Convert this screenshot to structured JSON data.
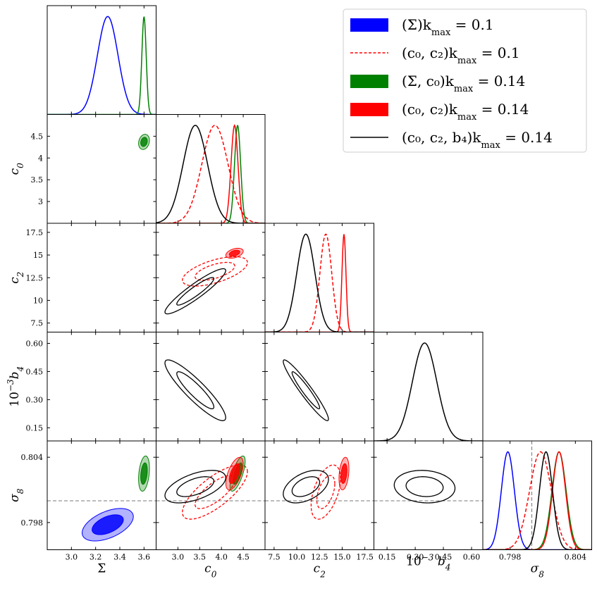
{
  "chart_data": {
    "type": "corner",
    "parameters": [
      {
        "key": "sigma",
        "label_x": "Σ",
        "label_y": "",
        "range": [
          2.8,
          3.7
        ],
        "ticks": [
          "3.0",
          "3.2",
          "3.4",
          "3.6"
        ]
      },
      {
        "key": "c0",
        "label_x": "c0",
        "label_y": "c0",
        "range": [
          2.5,
          5.0
        ],
        "ticks": [
          "3.0",
          "3.5",
          "4.0",
          "4.5"
        ]
      },
      {
        "key": "c2",
        "label_x": "c2",
        "label_y": "c2",
        "range": [
          6.5,
          18.5
        ],
        "ticks": [
          "7.5",
          "10.0",
          "12.5",
          "15.0",
          "17.5"
        ]
      },
      {
        "key": "b4",
        "label_x": "10⁻³ b4",
        "label_y": "10⁻³ b4",
        "range": [
          0.08,
          0.66
        ],
        "ticks": [
          "0.15",
          "0.30",
          "0.45",
          "0.60"
        ]
      },
      {
        "key": "s8",
        "label_x": "σ8",
        "label_y": "σ8",
        "range": [
          0.7955,
          0.8055
        ],
        "ticks": [
          "0.798",
          "0.804"
        ]
      }
    ],
    "tick_labels": {
      "sigma": [
        "3.0",
        "3.2",
        "3.4",
        "3.6"
      ],
      "c0": [
        "3.0",
        "3.5",
        "4.0",
        "4.5"
      ],
      "c2": [
        "7.5",
        "10.0",
        "12.5",
        "15.0",
        "17.5"
      ],
      "b4": [
        "0.15",
        "0.30",
        "0.45",
        "0.60"
      ],
      "s8": [
        "0.798",
        "0.804"
      ],
      "c0_y": [
        "3",
        "3.5",
        "4",
        "4.5"
      ],
      "c2_y": [
        "7.5",
        "10",
        "12.5",
        "15",
        "17.5"
      ]
    },
    "axis_labels": {
      "x_sigma": "Σ",
      "x_c0": "c",
      "x_c0_sub": "0",
      "x_c2": "c",
      "x_c2_sub": "2",
      "x_b4": "10",
      "x_b4_sup": "−3",
      "x_b4_tail": " b",
      "x_b4_sub": "4",
      "x_s8": "σ",
      "x_s8_sub": "8",
      "y_c0": "c",
      "y_c0_sub": "0",
      "y_c2": "c",
      "y_c2_sub": "2",
      "y_b4": "10",
      "y_b4_sup": "−3",
      "y_b4_tail": "b",
      "y_b4_sub": "4",
      "y_s8": "σ",
      "y_s8_sub": "8"
    },
    "fiducial": {
      "s8": 0.8,
      "style": "dashed gray"
    },
    "series": [
      {
        "name": "(Σ)",
        "kmax": "0.1",
        "color": "#0000ff",
        "style": "filled",
        "mean": {
          "sigma": 3.3,
          "s8": 0.7978
        },
        "sd": {
          "sigma": 0.085,
          "s8": 0.0006
        },
        "corr": {
          "sigma-s8": 0.5
        }
      },
      {
        "name": "(c0, c2)",
        "kmax": "0.1",
        "color": "#ff0000",
        "style": "dashed",
        "mean": {
          "c0": 3.85,
          "c2": 13.2,
          "s8": 0.8008
        },
        "sd": {
          "c0": 0.3,
          "c2": 0.65,
          "s8": 0.001
        },
        "corr": {
          "c0-c2": 0.6,
          "c0-s8": 0.75,
          "c2-s8": 0.5
        }
      },
      {
        "name": "(Σ, c0)",
        "kmax": "0.14",
        "color": "#008000",
        "style": "filled",
        "mean": {
          "sigma": 3.6,
          "c0": 4.37,
          "s8": 0.8025
        },
        "sd": {
          "sigma": 0.018,
          "c0": 0.07,
          "s8": 0.00065
        },
        "corr": {
          "sigma-c0": 0.2,
          "sigma-s8": 0.3,
          "c0-s8": 0.7
        }
      },
      {
        "name": "(c0, c2)",
        "kmax": "0.14",
        "color": "#ff0000",
        "style": "filled",
        "mean": {
          "c0": 4.3,
          "c2": 15.2,
          "s8": 0.8025
        },
        "sd": {
          "c0": 0.08,
          "c2": 0.22,
          "s8": 0.0006
        },
        "corr": {
          "c0-c2": 0.4,
          "c0-s8": 0.6,
          "c2-s8": 0.3
        }
      },
      {
        "name": "(c0, c2, b4)",
        "kmax": "0.14",
        "color": "#000000",
        "style": "line",
        "mean": {
          "c0": 3.4,
          "c2": 11.0,
          "b4": 0.35,
          "s8": 0.8013
        },
        "sd": {
          "c0": 0.28,
          "c2": 1.0,
          "b4": 0.065,
          "s8": 0.0006
        },
        "corr": {
          "c0-c2": 0.92,
          "c0-b4": -0.9,
          "c2-b4": -0.95,
          "c0-s8": 0.55,
          "c2-s8": 0.45,
          "b4-s8": -0.1
        }
      }
    ],
    "legend": {
      "placement": "top-right",
      "entries": [
        {
          "label": "(Σ)",
          "k": "k",
          "ksub": "max",
          "value": " = 0.1"
        },
        {
          "label": "(c₀, c₂)",
          "k": "k",
          "ksub": "max",
          "value": " = 0.1"
        },
        {
          "label": "(Σ, c₀)",
          "k": "k",
          "ksub": "max",
          "value": " = 0.14"
        },
        {
          "label": "(c₀, c₂)",
          "k": "k",
          "ksub": "max",
          "value": " = 0.14"
        },
        {
          "label": "(c₀, c₂, b₄)",
          "k": "k",
          "ksub": "max",
          "value": " = 0.14"
        }
      ]
    }
  }
}
